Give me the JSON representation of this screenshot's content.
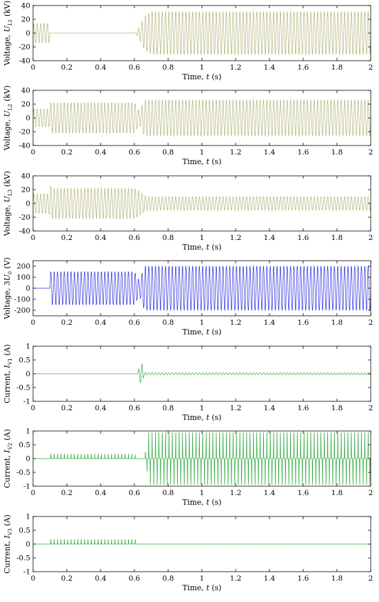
{
  "chart_data": [
    {
      "type": "line",
      "ylabel": {
        "prefix": "Voltage, ",
        "var": "U",
        "sub": "L1",
        "unit": " (kV)"
      },
      "xlabel": {
        "prefix": "Time, ",
        "var": "t",
        "unit": " (s)"
      },
      "xlim": [
        0,
        2
      ],
      "ylim": [
        -40,
        40
      ],
      "xticks": [
        {
          "v": 0,
          "label": "0"
        },
        {
          "v": 0.2,
          "label": "0.2"
        },
        {
          "v": 0.4,
          "label": "0.4"
        },
        {
          "v": 0.6,
          "label": "0.6"
        },
        {
          "v": 0.8,
          "label": "0.8"
        },
        {
          "v": 1,
          "label": "1"
        },
        {
          "v": 1.2,
          "label": "1.2"
        },
        {
          "v": 1.4,
          "label": "1.4"
        },
        {
          "v": 1.6,
          "label": "1.6"
        },
        {
          "v": 1.8,
          "label": "1.8"
        },
        {
          "v": 2,
          "label": "2"
        }
      ],
      "yticks": [
        {
          "v": 40,
          "label": "40"
        },
        {
          "v": 20,
          "label": "20"
        },
        {
          "v": 0,
          "label": "0"
        },
        {
          "v": -20,
          "label": "-20"
        },
        {
          "v": -40,
          "label": "-40"
        }
      ],
      "color": "#b3b37a",
      "freq_hz": 50,
      "envelope": [
        [
          0,
          0,
          14
        ],
        [
          0.02,
          0,
          14
        ],
        [
          0.1,
          0,
          14
        ],
        [
          0.101,
          0,
          0
        ],
        [
          0.6,
          0,
          0
        ],
        [
          0.62,
          0,
          5
        ],
        [
          0.66,
          0,
          24
        ],
        [
          0.7,
          0,
          31
        ],
        [
          2,
          0,
          31
        ]
      ]
    },
    {
      "type": "line",
      "ylabel": {
        "prefix": "Voltage, ",
        "var": "U",
        "sub": "L2",
        "unit": " (kV)"
      },
      "xlabel": {
        "prefix": "Time, ",
        "var": "t",
        "unit": " (s)"
      },
      "xlim": [
        0,
        2
      ],
      "ylim": [
        -40,
        40
      ],
      "xticks": [
        {
          "v": 0,
          "label": "0"
        },
        {
          "v": 0.2,
          "label": "0.2"
        },
        {
          "v": 0.4,
          "label": "0.4"
        },
        {
          "v": 0.6,
          "label": "0.6"
        },
        {
          "v": 0.8,
          "label": "0.8"
        },
        {
          "v": 1,
          "label": "1"
        },
        {
          "v": 1.2,
          "label": "1.2"
        },
        {
          "v": 1.4,
          "label": "1.4"
        },
        {
          "v": 1.6,
          "label": "1.6"
        },
        {
          "v": 1.8,
          "label": "1.8"
        },
        {
          "v": 2,
          "label": "2"
        }
      ],
      "yticks": [
        {
          "v": 40,
          "label": "40"
        },
        {
          "v": 20,
          "label": "20"
        },
        {
          "v": 0,
          "label": "0"
        },
        {
          "v": -20,
          "label": "-20"
        },
        {
          "v": -40,
          "label": "-40"
        }
      ],
      "color": "#b3b37a",
      "freq_hz": 50,
      "envelope": [
        [
          0,
          0,
          13
        ],
        [
          0.1,
          0,
          13
        ],
        [
          0.1,
          0,
          22
        ],
        [
          0.6,
          0,
          22
        ],
        [
          0.63,
          0,
          10
        ],
        [
          0.66,
          0,
          26
        ],
        [
          2,
          0,
          26
        ]
      ]
    },
    {
      "type": "line",
      "ylabel": {
        "prefix": "Voltage, ",
        "var": "U",
        "sub": "L3",
        "unit": " (kV)"
      },
      "xlabel": {
        "prefix": "Time, ",
        "var": "t",
        "unit": " (s)"
      },
      "xlim": [
        0,
        2
      ],
      "ylim": [
        -40,
        40
      ],
      "xticks": [
        {
          "v": 0,
          "label": "0"
        },
        {
          "v": 0.2,
          "label": "0.2"
        },
        {
          "v": 0.4,
          "label": "0.4"
        },
        {
          "v": 0.6,
          "label": "0.6"
        },
        {
          "v": 0.8,
          "label": "0.8"
        },
        {
          "v": 1,
          "label": "1"
        },
        {
          "v": 1.2,
          "label": "1.2"
        },
        {
          "v": 1.4,
          "label": "1.4"
        },
        {
          "v": 1.6,
          "label": "1.6"
        },
        {
          "v": 1.8,
          "label": "1.8"
        },
        {
          "v": 2,
          "label": "2"
        }
      ],
      "yticks": [
        {
          "v": 40,
          "label": "40"
        },
        {
          "v": 20,
          "label": "20"
        },
        {
          "v": 0,
          "label": "0"
        },
        {
          "v": -20,
          "label": "-20"
        },
        {
          "v": -40,
          "label": "-40"
        }
      ],
      "color": "#b3b37a",
      "freq_hz": 50,
      "envelope": [
        [
          0,
          0,
          14
        ],
        [
          0.095,
          0,
          14
        ],
        [
          0.1,
          0,
          28
        ],
        [
          0.11,
          0,
          22
        ],
        [
          0.6,
          0,
          22
        ],
        [
          0.64,
          0,
          16
        ],
        [
          0.67,
          0,
          10
        ],
        [
          2,
          0,
          10
        ]
      ]
    },
    {
      "type": "line",
      "ylabel": {
        "prefix": "Voltage, 3",
        "var": "U",
        "sub": "0",
        "unit": " (V)"
      },
      "xlabel": {
        "prefix": "Time, ",
        "var": "t",
        "unit": " (s)"
      },
      "xlim": [
        0,
        2
      ],
      "ylim": [
        -250,
        250
      ],
      "xticks": [
        {
          "v": 0,
          "label": "0"
        },
        {
          "v": 0.2,
          "label": "0.2"
        },
        {
          "v": 0.4,
          "label": "0.4"
        },
        {
          "v": 0.6,
          "label": "0.6"
        },
        {
          "v": 0.8,
          "label": "0.8"
        },
        {
          "v": 1,
          "label": "1"
        },
        {
          "v": 1.2,
          "label": "1.2"
        },
        {
          "v": 1.4,
          "label": "1.4"
        },
        {
          "v": 1.6,
          "label": "1.6"
        },
        {
          "v": 1.8,
          "label": "1.8"
        },
        {
          "v": 2,
          "label": "2"
        }
      ],
      "yticks": [
        {
          "v": 200,
          "label": "200"
        },
        {
          "v": 100,
          "label": "100"
        },
        {
          "v": 0,
          "label": "0"
        },
        {
          "v": -100,
          "label": "-100"
        },
        {
          "v": -200,
          "label": "-200"
        }
      ],
      "color": "#2a2ae0",
      "freq_hz": 50,
      "envelope": [
        [
          0,
          0,
          0
        ],
        [
          0.1,
          0,
          0
        ],
        [
          0.1,
          0,
          150
        ],
        [
          0.6,
          0,
          150
        ],
        [
          0.63,
          0,
          70
        ],
        [
          0.66,
          0,
          200
        ],
        [
          2,
          0,
          200
        ]
      ]
    },
    {
      "type": "line",
      "ylabel": {
        "prefix": "Current, ",
        "var": "I",
        "sub": "V1",
        "unit": " (A)"
      },
      "xlabel": {
        "prefix": "Time, ",
        "var": "t",
        "unit": " (s)"
      },
      "xlim": [
        0,
        2
      ],
      "ylim": [
        -1,
        1
      ],
      "xticks": [
        {
          "v": 0,
          "label": "0"
        },
        {
          "v": 0.2,
          "label": "0.2"
        },
        {
          "v": 0.4,
          "label": "0.4"
        },
        {
          "v": 0.6,
          "label": "0.6"
        },
        {
          "v": 0.8,
          "label": "0.8"
        },
        {
          "v": 1,
          "label": "1"
        },
        {
          "v": 1.2,
          "label": "1.2"
        },
        {
          "v": 1.4,
          "label": "1.4"
        },
        {
          "v": 1.6,
          "label": "1.6"
        },
        {
          "v": 1.8,
          "label": "1.8"
        },
        {
          "v": 2,
          "label": "2"
        }
      ],
      "yticks": [
        {
          "v": 1,
          "label": "1"
        },
        {
          "v": 0.5,
          "label": "0.5"
        },
        {
          "v": 0,
          "label": "0"
        },
        {
          "v": -0.5,
          "label": "-0.5"
        },
        {
          "v": -1,
          "label": "-1"
        }
      ],
      "color": "#2ea63a",
      "freq_hz": 50,
      "envelope": [
        [
          0,
          0,
          0.004
        ],
        [
          0.62,
          0,
          0.004
        ],
        [
          0.63,
          0,
          0.3
        ],
        [
          0.645,
          0,
          0.35
        ],
        [
          0.66,
          0,
          0.04
        ],
        [
          2,
          0,
          0.03
        ]
      ]
    },
    {
      "type": "line",
      "ylabel": {
        "prefix": "Current, ",
        "var": "I",
        "sub": "V2",
        "unit": " (A)"
      },
      "xlabel": {
        "prefix": "Time, ",
        "var": "t",
        "unit": " (s)"
      },
      "xlim": [
        0,
        2
      ],
      "ylim": [
        -1,
        1
      ],
      "xticks": [
        {
          "v": 0,
          "label": "0"
        },
        {
          "v": 0.2,
          "label": "0.2"
        },
        {
          "v": 0.4,
          "label": "0.4"
        },
        {
          "v": 0.6,
          "label": "0.6"
        },
        {
          "v": 0.8,
          "label": "0.8"
        },
        {
          "v": 1,
          "label": "1"
        },
        {
          "v": 1.2,
          "label": "1.2"
        },
        {
          "v": 1.4,
          "label": "1.4"
        },
        {
          "v": 1.6,
          "label": "1.6"
        },
        {
          "v": 1.8,
          "label": "1.8"
        },
        {
          "v": 2,
          "label": "2"
        }
      ],
      "yticks": [
        {
          "v": 1,
          "label": "1"
        },
        {
          "v": 0.5,
          "label": "0.5"
        },
        {
          "v": 0,
          "label": "0"
        },
        {
          "v": -0.5,
          "label": "-0.5"
        },
        {
          "v": -1,
          "label": "-1"
        }
      ],
      "color": "#2ea63a",
      "freq_hz": 50,
      "shape": "spike",
      "envelope": [
        [
          0,
          0,
          0
        ],
        [
          0.1,
          0,
          0
        ],
        [
          0.1,
          0,
          0.17
        ],
        [
          0.6,
          0,
          0.17
        ],
        [
          0.62,
          0,
          0
        ],
        [
          0.66,
          0,
          0
        ],
        [
          0.68,
          0,
          0.95
        ],
        [
          2,
          0,
          0.95
        ]
      ],
      "neg_envelope": [
        [
          0,
          0
        ],
        [
          0.66,
          0
        ],
        [
          0.67,
          0.3
        ],
        [
          0.69,
          0.95
        ],
        [
          2,
          0.95
        ]
      ]
    },
    {
      "type": "line",
      "ylabel": {
        "prefix": "Current, ",
        "var": "I",
        "sub": "V3",
        "unit": " (A)"
      },
      "xlabel": {
        "prefix": "Time, ",
        "var": "t",
        "unit": " (s)"
      },
      "xlim": [
        0,
        2
      ],
      "ylim": [
        -1,
        1
      ],
      "xticks": [
        {
          "v": 0,
          "label": "0"
        },
        {
          "v": 0.2,
          "label": "0.2"
        },
        {
          "v": 0.4,
          "label": "0.4"
        },
        {
          "v": 0.6,
          "label": "0.6"
        },
        {
          "v": 0.8,
          "label": "0.8"
        },
        {
          "v": 1,
          "label": "1"
        },
        {
          "v": 1.2,
          "label": "1.2"
        },
        {
          "v": 1.4,
          "label": "1.4"
        },
        {
          "v": 1.6,
          "label": "1.6"
        },
        {
          "v": 1.8,
          "label": "1.8"
        },
        {
          "v": 2,
          "label": "2"
        }
      ],
      "yticks": [
        {
          "v": 1,
          "label": "1"
        },
        {
          "v": 0.5,
          "label": "0.5"
        },
        {
          "v": 0,
          "label": "0"
        },
        {
          "v": -0.5,
          "label": "-0.5"
        },
        {
          "v": -1,
          "label": "-1"
        }
      ],
      "color": "#2ea63a",
      "freq_hz": 50,
      "shape": "spike",
      "envelope": [
        [
          0,
          0,
          0
        ],
        [
          0.1,
          0,
          0
        ],
        [
          0.1,
          0,
          0.17
        ],
        [
          0.62,
          0,
          0.17
        ],
        [
          0.625,
          0,
          0
        ],
        [
          2,
          0,
          0.005
        ]
      ]
    }
  ]
}
